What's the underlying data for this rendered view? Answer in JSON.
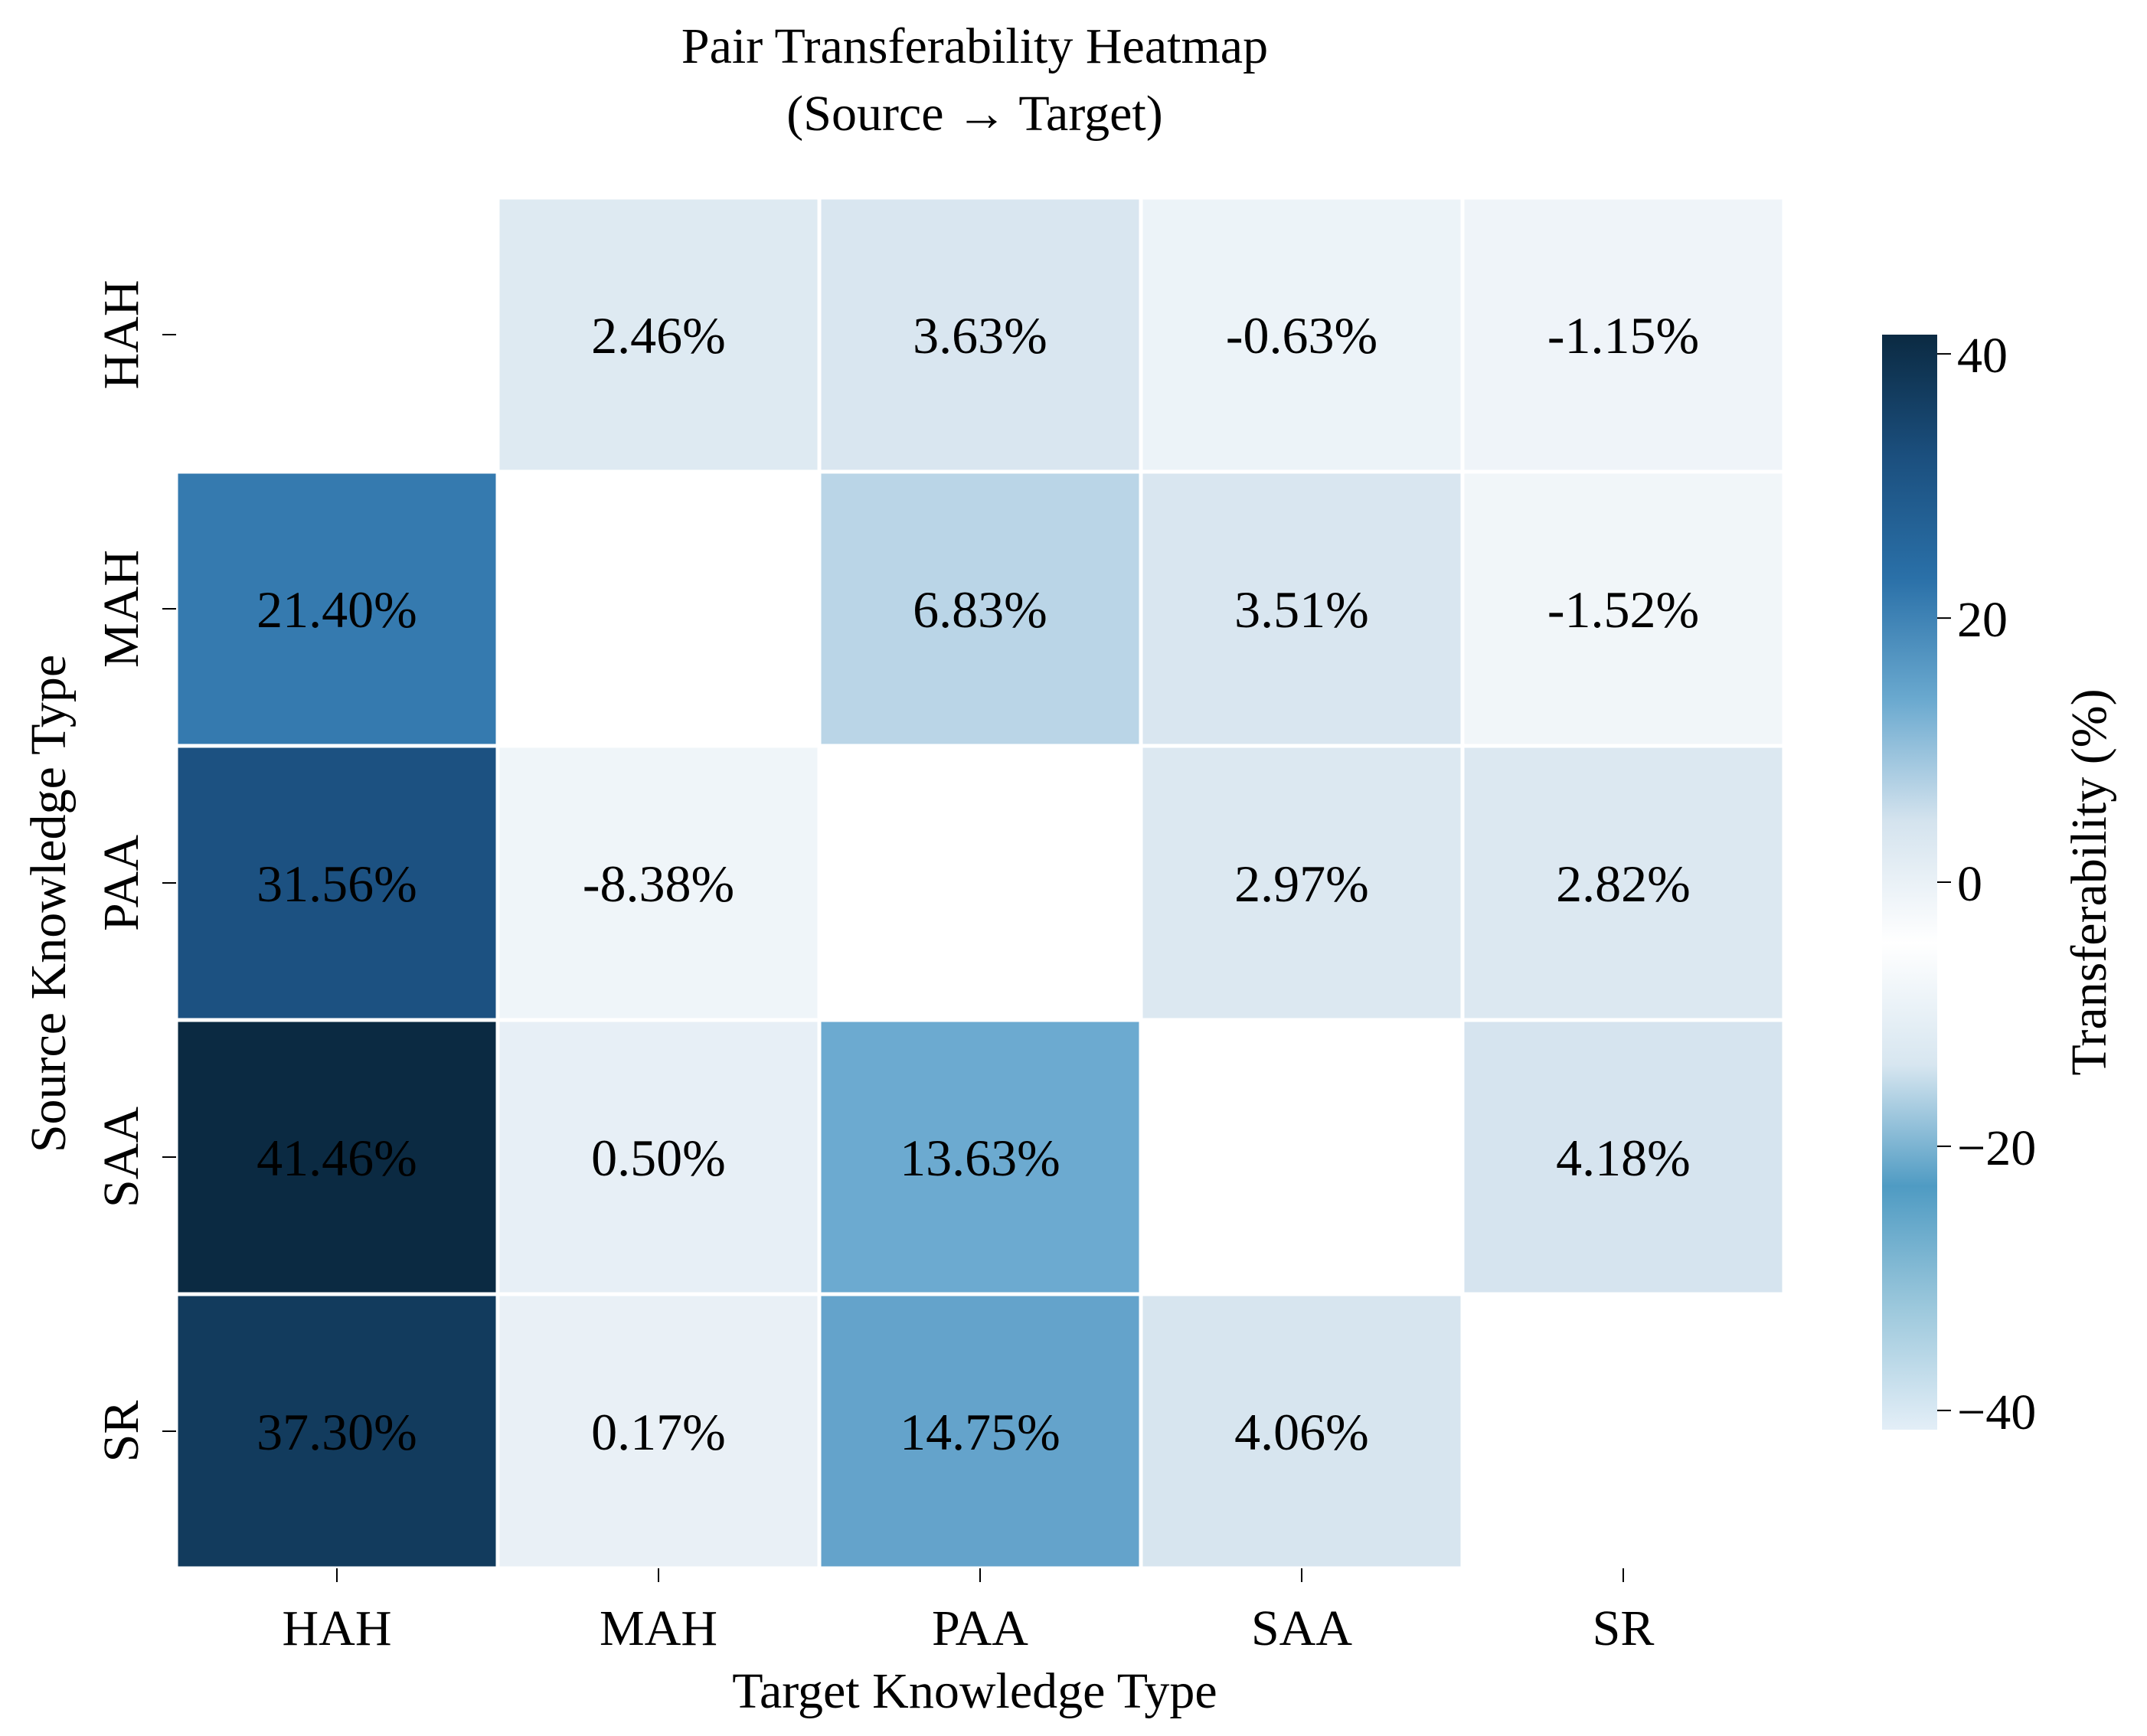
{
  "chart_data": {
    "type": "heatmap",
    "title": "Pair Transferability Heatmap",
    "subtitle": "(Source → Target)",
    "xlabel": "Target Knowledge Type",
    "ylabel": "Source Knowledge Type",
    "columns": [
      "HAH",
      "MAH",
      "PAA",
      "SAA",
      "SR"
    ],
    "rows": [
      "HAH",
      "MAH",
      "PAA",
      "SAA",
      "SR"
    ],
    "values": [
      [
        null,
        2.46,
        3.63,
        -0.63,
        -1.15
      ],
      [
        21.4,
        null,
        6.83,
        3.51,
        -1.52
      ],
      [
        31.56,
        -8.38,
        null,
        2.97,
        2.82
      ],
      [
        41.46,
        0.5,
        13.63,
        null,
        4.18
      ],
      [
        37.3,
        0.17,
        14.75,
        4.06,
        null
      ]
    ],
    "labels": [
      [
        "",
        "2.46%",
        "3.63%",
        "-0.63%",
        "-1.15%"
      ],
      [
        "21.40%",
        "",
        "6.83%",
        "3.51%",
        "-1.52%"
      ],
      [
        "31.56%",
        "-8.38%",
        "",
        "2.97%",
        "2.82%"
      ],
      [
        "41.46%",
        "0.50%",
        "13.63%",
        "",
        "4.18%"
      ],
      [
        "37.30%",
        "0.17%",
        "14.75%",
        "4.06%",
        ""
      ]
    ],
    "colorbar": {
      "label": "Transferability (%)",
      "range": [
        -41.46,
        41.46
      ],
      "ticks": [
        40,
        20,
        0,
        -20,
        -40
      ],
      "tick_labels": [
        "40",
        "20",
        "0",
        "−20",
        "−40"
      ],
      "stops": [
        "#e3eef7",
        "#9cc8dc",
        "#4f9bc3",
        "#d7e6f0",
        "#ffffff",
        "#d4e3ee",
        "#6aa9cf",
        "#2a70a8",
        "#1b4f7e",
        "#0b2a42"
      ]
    },
    "missing_diagonal": true,
    "grid": false
  }
}
